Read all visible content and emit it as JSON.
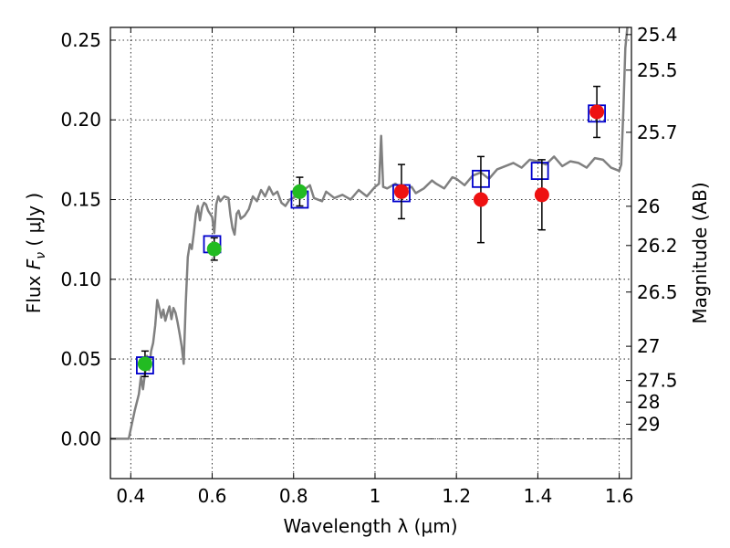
{
  "chart_data": {
    "type": "scatter",
    "xlabel": "Wavelength  λ (μm)",
    "ylabel_prefix": "Flux  ",
    "ylabel_symbol": "F",
    "ylabel_subscript": "ν",
    "ylabel_unit": "  ( μJy )",
    "ylabel_right": "Magnitude (AB)",
    "xlim": [
      0.35,
      1.63
    ],
    "ylim": [
      -0.025,
      0.258
    ],
    "xticks": [
      0.4,
      0.6,
      0.8,
      1.0,
      1.2,
      1.4,
      1.6
    ],
    "xtick_labels": [
      "0.4",
      "0.6",
      "0.8",
      "1",
      "1.2",
      "1.4",
      "1.6"
    ],
    "yticks": [
      0.0,
      0.05,
      0.1,
      0.15,
      0.2,
      0.25
    ],
    "ytick_labels": [
      "0.00",
      "0.05",
      "0.10",
      "0.15",
      "0.20",
      "0.25"
    ],
    "right_ticks": [
      {
        "label": "25.4",
        "flux": 0.2535
      },
      {
        "label": "25.5",
        "flux": 0.2312
      },
      {
        "label": "25.7",
        "flux": 0.1922
      },
      {
        "label": "26",
        "flux": 0.1458
      },
      {
        "label": "26.2",
        "flux": 0.1212
      },
      {
        "label": "26.5",
        "flux": 0.092
      },
      {
        "label": "27",
        "flux": 0.058
      },
      {
        "label": "27.5",
        "flux": 0.0365
      },
      {
        "label": "28",
        "flux": 0.023
      },
      {
        "label": "29",
        "flux": 0.0091
      }
    ],
    "grid": true,
    "colors": {
      "sed": "#808080",
      "model_box": "#0000cc",
      "green": "#22bb22",
      "red": "#ee1111",
      "errorbar": "#000000",
      "zero_line": "#000000"
    },
    "sed_template": [
      [
        0.35,
        0.0
      ],
      [
        0.395,
        0.0
      ],
      [
        0.4,
        0.006
      ],
      [
        0.41,
        0.018
      ],
      [
        0.42,
        0.028
      ],
      [
        0.425,
        0.039
      ],
      [
        0.43,
        0.031
      ],
      [
        0.435,
        0.041
      ],
      [
        0.44,
        0.052
      ],
      [
        0.445,
        0.043
      ],
      [
        0.45,
        0.055
      ],
      [
        0.455,
        0.06
      ],
      [
        0.46,
        0.071
      ],
      [
        0.465,
        0.087
      ],
      [
        0.47,
        0.082
      ],
      [
        0.475,
        0.076
      ],
      [
        0.48,
        0.081
      ],
      [
        0.485,
        0.074
      ],
      [
        0.49,
        0.079
      ],
      [
        0.495,
        0.083
      ],
      [
        0.5,
        0.075
      ],
      [
        0.505,
        0.082
      ],
      [
        0.51,
        0.079
      ],
      [
        0.515,
        0.073
      ],
      [
        0.52,
        0.066
      ],
      [
        0.525,
        0.058
      ],
      [
        0.53,
        0.047
      ],
      [
        0.535,
        0.084
      ],
      [
        0.54,
        0.114
      ],
      [
        0.545,
        0.122
      ],
      [
        0.55,
        0.119
      ],
      [
        0.555,
        0.129
      ],
      [
        0.56,
        0.141
      ],
      [
        0.565,
        0.146
      ],
      [
        0.57,
        0.137
      ],
      [
        0.575,
        0.145
      ],
      [
        0.58,
        0.148
      ],
      [
        0.585,
        0.147
      ],
      [
        0.59,
        0.143
      ],
      [
        0.595,
        0.141
      ],
      [
        0.6,
        0.139
      ],
      [
        0.605,
        0.129
      ],
      [
        0.61,
        0.147
      ],
      [
        0.615,
        0.152
      ],
      [
        0.62,
        0.149
      ],
      [
        0.63,
        0.152
      ],
      [
        0.64,
        0.151
      ],
      [
        0.645,
        0.14
      ],
      [
        0.65,
        0.132
      ],
      [
        0.655,
        0.128
      ],
      [
        0.66,
        0.141
      ],
      [
        0.665,
        0.143
      ],
      [
        0.67,
        0.138
      ],
      [
        0.68,
        0.14
      ],
      [
        0.69,
        0.144
      ],
      [
        0.7,
        0.152
      ],
      [
        0.71,
        0.149
      ],
      [
        0.72,
        0.156
      ],
      [
        0.73,
        0.152
      ],
      [
        0.74,
        0.158
      ],
      [
        0.75,
        0.153
      ],
      [
        0.76,
        0.155
      ],
      [
        0.77,
        0.148
      ],
      [
        0.78,
        0.146
      ],
      [
        0.79,
        0.15
      ],
      [
        0.8,
        0.151
      ],
      [
        0.82,
        0.155
      ],
      [
        0.84,
        0.159
      ],
      [
        0.85,
        0.151
      ],
      [
        0.87,
        0.149
      ],
      [
        0.88,
        0.155
      ],
      [
        0.9,
        0.151
      ],
      [
        0.92,
        0.153
      ],
      [
        0.94,
        0.15
      ],
      [
        0.96,
        0.156
      ],
      [
        0.98,
        0.152
      ],
      [
        1.0,
        0.158
      ],
      [
        1.01,
        0.16
      ],
      [
        1.015,
        0.19
      ],
      [
        1.02,
        0.158
      ],
      [
        1.03,
        0.157
      ],
      [
        1.05,
        0.16
      ],
      [
        1.07,
        0.156
      ],
      [
        1.09,
        0.158
      ],
      [
        1.1,
        0.154
      ],
      [
        1.12,
        0.157
      ],
      [
        1.14,
        0.162
      ],
      [
        1.15,
        0.16
      ],
      [
        1.17,
        0.157
      ],
      [
        1.19,
        0.164
      ],
      [
        1.2,
        0.163
      ],
      [
        1.22,
        0.159
      ],
      [
        1.24,
        0.165
      ],
      [
        1.26,
        0.167
      ],
      [
        1.28,
        0.163
      ],
      [
        1.3,
        0.169
      ],
      [
        1.32,
        0.171
      ],
      [
        1.34,
        0.173
      ],
      [
        1.36,
        0.17
      ],
      [
        1.38,
        0.175
      ],
      [
        1.4,
        0.174
      ],
      [
        1.42,
        0.172
      ],
      [
        1.44,
        0.177
      ],
      [
        1.46,
        0.171
      ],
      [
        1.48,
        0.174
      ],
      [
        1.5,
        0.173
      ],
      [
        1.52,
        0.17
      ],
      [
        1.54,
        0.176
      ],
      [
        1.56,
        0.175
      ],
      [
        1.58,
        0.17
      ],
      [
        1.6,
        0.168
      ],
      [
        1.605,
        0.172
      ],
      [
        1.61,
        0.205
      ],
      [
        1.615,
        0.245
      ],
      [
        1.62,
        0.258
      ]
    ],
    "model_boxes": [
      {
        "x": 0.435,
        "y": 0.046
      },
      {
        "x": 0.6,
        "y": 0.122
      },
      {
        "x": 0.815,
        "y": 0.15
      },
      {
        "x": 1.065,
        "y": 0.154
      },
      {
        "x": 1.26,
        "y": 0.163
      },
      {
        "x": 1.405,
        "y": 0.168
      },
      {
        "x": 1.545,
        "y": 0.204
      }
    ],
    "series": [
      {
        "name": "green",
        "points": [
          {
            "x": 0.435,
            "y": 0.047,
            "err": 0.008
          },
          {
            "x": 0.605,
            "y": 0.119,
            "err": 0.007
          },
          {
            "x": 0.815,
            "y": 0.155,
            "err": 0.009
          }
        ]
      },
      {
        "name": "red",
        "points": [
          {
            "x": 1.065,
            "y": 0.155,
            "err": 0.017
          },
          {
            "x": 1.26,
            "y": 0.15,
            "err": 0.027
          },
          {
            "x": 1.41,
            "y": 0.153,
            "err": 0.022
          },
          {
            "x": 1.545,
            "y": 0.205,
            "err": 0.016
          }
        ]
      }
    ]
  }
}
